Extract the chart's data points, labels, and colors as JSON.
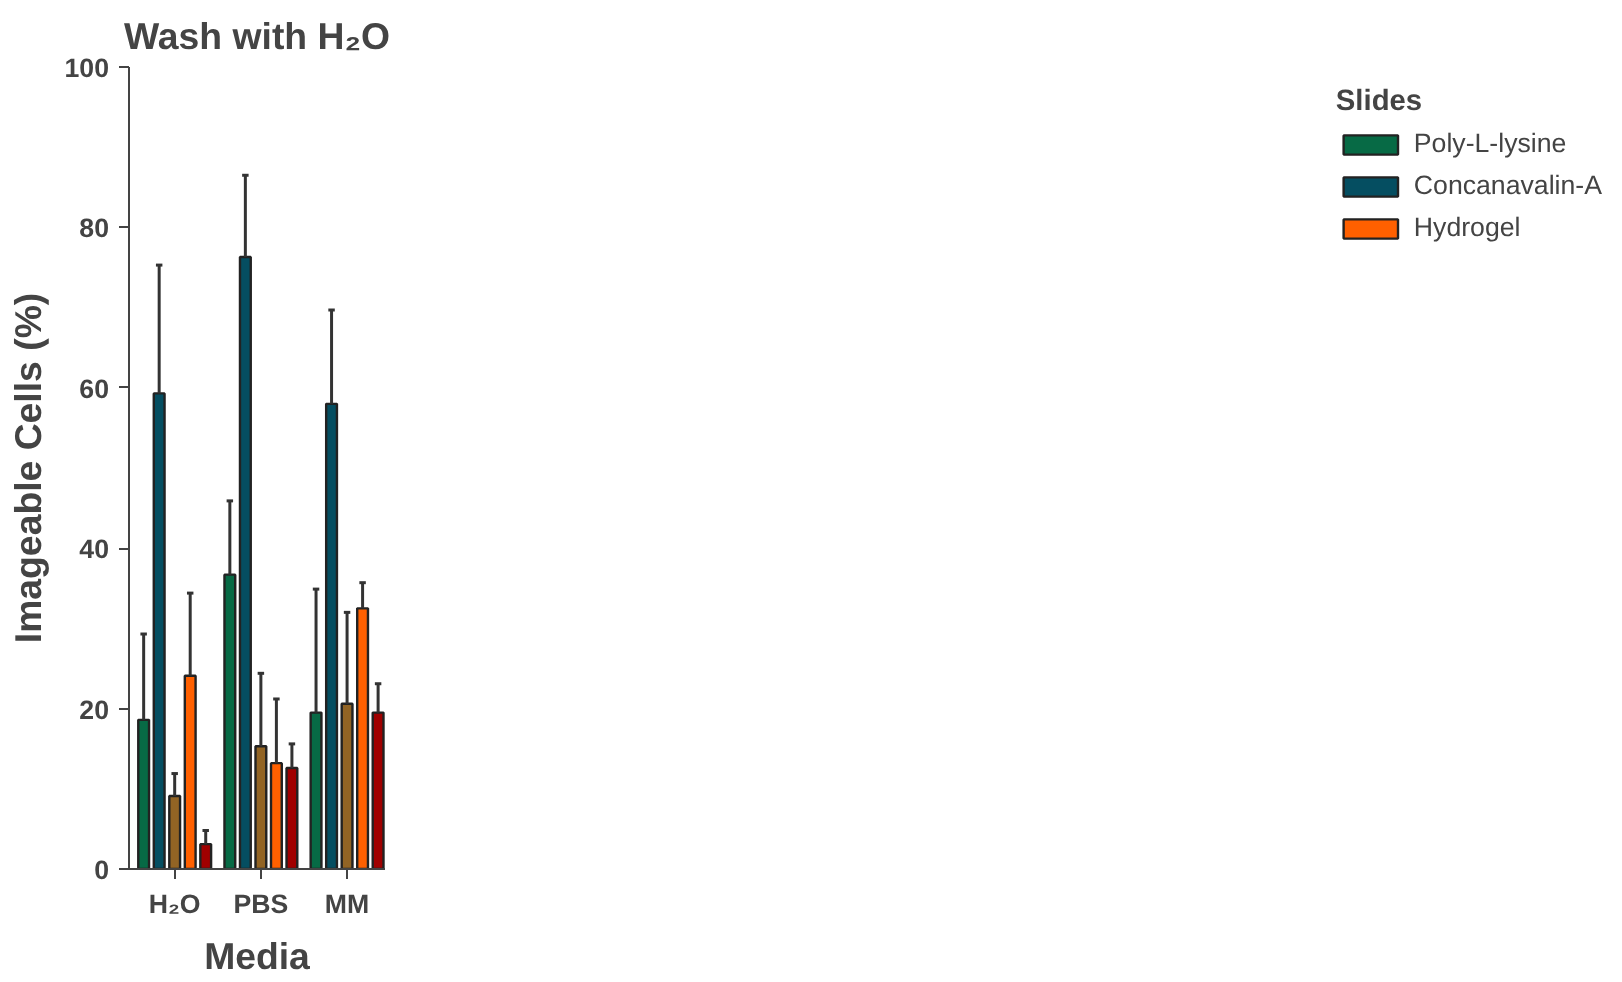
{
  "chart_data": {
    "type": "bar",
    "title": "Wash with H₂O",
    "xlabel": "Media",
    "ylabel": "Imageable Cells (%)",
    "legend_title": "Slides",
    "categories": [
      "H₂O",
      "PBS",
      "MM"
    ],
    "series": [
      {
        "name": "Poly-L-lysine",
        "color": "#076a45",
        "values": [
          18.6,
          36.7,
          19.5
        ],
        "errors": [
          [
            18.6,
            29.3
          ],
          [
            36.7,
            45.9
          ],
          [
            19.5,
            34.9
          ]
        ]
      },
      {
        "name": "Concanavalin-A",
        "color": "#054e61",
        "values": [
          59.3,
          76.3,
          58.0
        ],
        "errors": [
          [
            59.3,
            75.3
          ],
          [
            76.3,
            86.5
          ],
          [
            58.0,
            69.7
          ]
        ]
      },
      {
        "color": "#926424",
        "values": [
          9.1,
          15.3,
          20.6
        ],
        "errors": [
          [
            9.1,
            11.9
          ],
          [
            15.3,
            24.4
          ],
          [
            20.6,
            32.0
          ]
        ]
      },
      {
        "name": "Hydrogel",
        "color": "#ff6000",
        "values": [
          24.1,
          13.2,
          32.5
        ],
        "errors": [
          [
            24.1,
            34.4
          ],
          [
            13.2,
            21.2
          ],
          [
            32.5,
            35.7
          ]
        ]
      },
      {
        "color": "#a00000",
        "values": [
          3.1,
          12.6,
          19.5
        ],
        "errors": [
          [
            3.1,
            4.8
          ],
          [
            12.6,
            15.6
          ],
          [
            19.5,
            23.1
          ]
        ]
      }
    ],
    "ylim": [
      0,
      100
    ],
    "yticks": [
      0,
      20,
      40,
      60,
      80,
      100
    ],
    "grid": false,
    "legend": "right"
  }
}
